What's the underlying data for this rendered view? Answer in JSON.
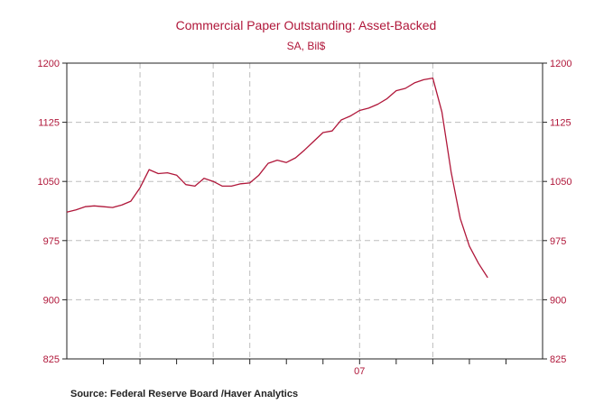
{
  "chart_data": {
    "type": "line",
    "title": "Commercial Paper Outstanding: Asset-Backed",
    "subtitle": "SA, Bil$",
    "source": "Source:  Federal Reserve Board /Haver Analytics",
    "ylim": [
      825,
      1200
    ],
    "yticks": [
      825,
      900,
      975,
      1050,
      1125,
      1200
    ],
    "yticks_left_labels": [
      "825",
      "900",
      "975",
      "1050",
      "1125",
      "1200"
    ],
    "yticks_right_labels": [
      "825",
      "900",
      "975",
      "1050",
      "1125",
      "1200"
    ],
    "xlim": [
      0,
      26
    ],
    "x_minor_ticks": [
      2,
      4,
      6,
      8,
      10,
      12,
      14,
      16,
      18,
      20,
      22,
      24
    ],
    "x_major_lines": [
      4,
      8,
      10,
      16,
      20
    ],
    "x_labels": [
      {
        "x": 16,
        "text": "07"
      }
    ],
    "grid": true,
    "series": [
      {
        "color": "#b0173a",
        "x": [
          0,
          0.5,
          1,
          1.5,
          2,
          2.5,
          3,
          3.5,
          4,
          4.5,
          5,
          5.5,
          6,
          6.5,
          7,
          7.5,
          8,
          8.5,
          9,
          9.5,
          10,
          10.5,
          11,
          11.5,
          12,
          12.5,
          13,
          13.5,
          14,
          14.5,
          15,
          15.5,
          16,
          16.5,
          17,
          17.5,
          18,
          18.5,
          19,
          19.5,
          20,
          20.5,
          21,
          21.5,
          22,
          22.5,
          23
        ],
        "values": [
          1011,
          1014,
          1018,
          1019,
          1018,
          1017,
          1020,
          1025,
          1042,
          1065,
          1060,
          1061,
          1058,
          1046,
          1044,
          1054,
          1050,
          1044,
          1044,
          1047,
          1048,
          1058,
          1073,
          1077,
          1074,
          1080,
          1090,
          1101,
          1112,
          1114,
          1128,
          1133,
          1140,
          1143,
          1148,
          1155,
          1165,
          1168,
          1175,
          1179,
          1181,
          1138,
          1062,
          1003,
          968,
          946,
          928
        ]
      }
    ]
  }
}
